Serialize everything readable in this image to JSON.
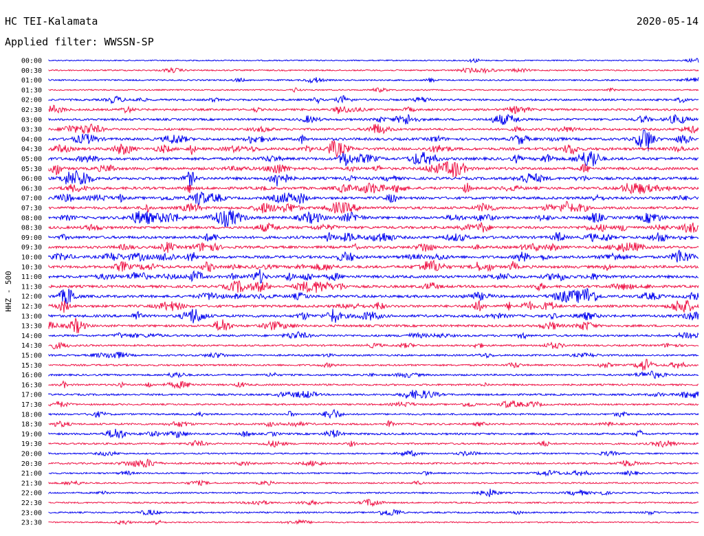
{
  "chart_data": {
    "type": "line",
    "title": "HC TEI-Kalamata",
    "date": "2020-05-14",
    "subtitle": "Applied filter: WWSSN-SP",
    "ylabel": "HHZ - 500",
    "trace_colors": [
      "#0000ee",
      "#ee1144"
    ],
    "categories": [
      "00:00",
      "00:30",
      "01:00",
      "01:30",
      "02:00",
      "02:30",
      "03:00",
      "03:30",
      "04:00",
      "04:30",
      "05:00",
      "05:30",
      "06:00",
      "06:30",
      "07:00",
      "07:30",
      "08:00",
      "08:30",
      "09:00",
      "09:30",
      "10:00",
      "10:30",
      "11:00",
      "11:30",
      "12:00",
      "12:30",
      "13:00",
      "13:30",
      "14:00",
      "14:30",
      "15:00",
      "15:30",
      "16:00",
      "16:30",
      "17:00",
      "17:30",
      "18:00",
      "18:30",
      "19:00",
      "19:30",
      "20:00",
      "20:30",
      "21:00",
      "21:30",
      "22:00",
      "22:30",
      "23:00",
      "23:30"
    ],
    "row_activity": [
      0.15,
      0.25,
      0.3,
      0.2,
      0.55,
      0.6,
      0.65,
      0.7,
      0.85,
      0.9,
      0.95,
      0.9,
      0.9,
      0.9,
      0.85,
      0.85,
      0.9,
      0.85,
      0.9,
      0.85,
      0.9,
      0.9,
      0.9,
      0.85,
      0.85,
      0.8,
      0.85,
      0.7,
      0.6,
      0.45,
      0.45,
      0.45,
      0.45,
      0.45,
      0.5,
      0.4,
      0.45,
      0.5,
      0.55,
      0.45,
      0.3,
      0.45,
      0.35,
      0.3,
      0.35,
      0.3,
      0.35,
      0.2
    ]
  }
}
